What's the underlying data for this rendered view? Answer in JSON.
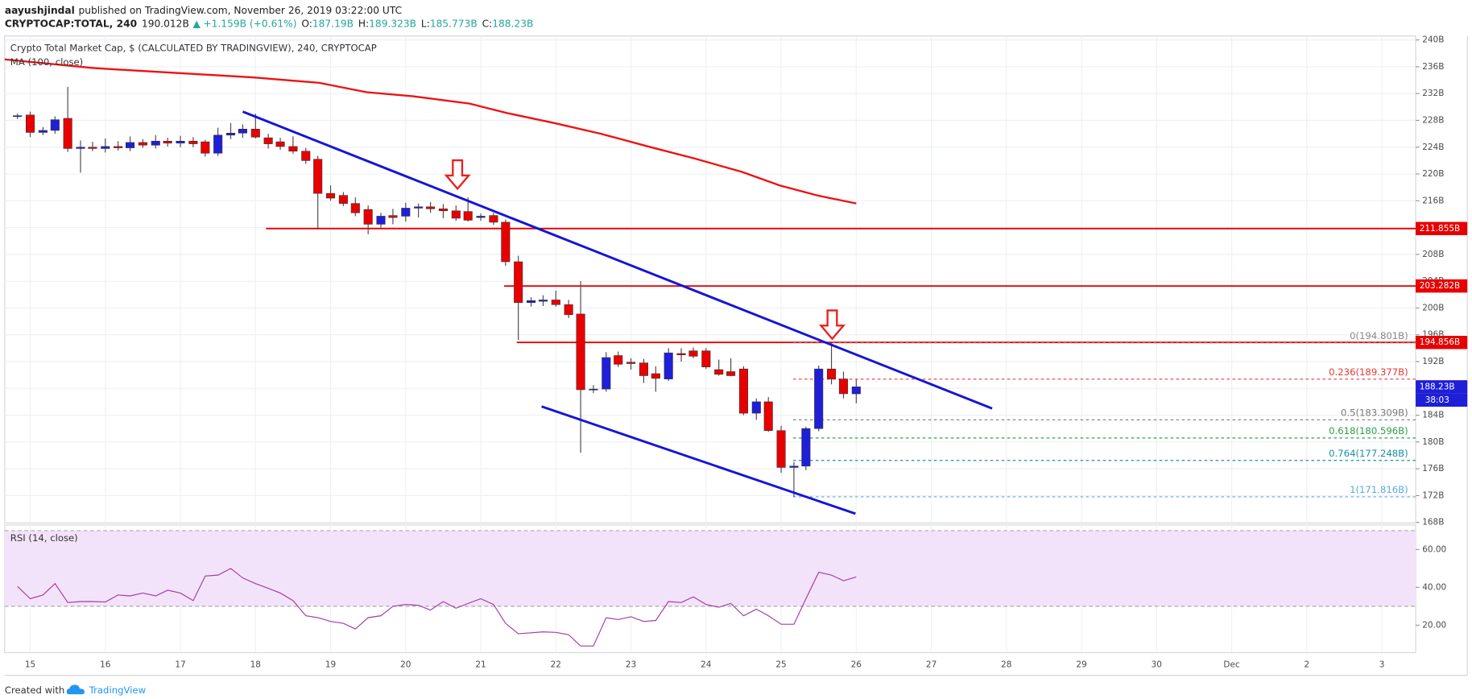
{
  "header": {
    "author": "aayushjindal",
    "published": "published on TradingView.com, November 26, 2019 03:22:00 UTC",
    "symbol": "CRYPTOCAP:TOTAL, 240",
    "price": "190.012B",
    "arrow": "▲",
    "change": "+1.159B (+0.61%)",
    "ohlc": [
      {
        "key": "O:",
        "value": "187.19B"
      },
      {
        "key": "H:",
        "value": "189.323B"
      },
      {
        "key": "L:",
        "value": "185.773B"
      },
      {
        "key": "C:",
        "value": "188.23B"
      }
    ]
  },
  "chart_data": [
    {
      "type": "candlestick",
      "title": "Crypto Total Market Cap, $ (CALCULATED BY TRADINGVIEW), 240, CRYPTOCAP",
      "up_color": "#1f1fd8",
      "down_color": "#e80000",
      "grid": true,
      "xlim": [
        14.66,
        33.45
      ],
      "xticks": [
        15,
        16,
        17,
        18,
        19,
        20,
        21,
        22,
        23,
        24,
        25,
        26,
        27,
        28,
        29,
        30,
        {
          "value": 31,
          "label": "Dec"
        },
        {
          "value": 32,
          "label": "2"
        },
        {
          "value": 33,
          "label": "3"
        }
      ],
      "ylim": [
        167.9,
        240.6
      ],
      "yticks": [
        {
          "value": 168,
          "label": "168B"
        },
        {
          "value": 172,
          "label": "172B"
        },
        {
          "value": 176,
          "label": "176B"
        },
        {
          "value": 180,
          "label": "180B"
        },
        {
          "value": 184,
          "label": "184B"
        },
        {
          "value": 188,
          "label": "188B"
        },
        {
          "value": 192,
          "label": "192B"
        },
        {
          "value": 196,
          "label": "196B"
        },
        {
          "value": 200,
          "label": "200B"
        },
        {
          "value": 204,
          "label": "204B"
        },
        {
          "value": 208,
          "label": "208B"
        },
        {
          "value": 212,
          "label": "212B"
        },
        {
          "value": 216,
          "label": "216B"
        },
        {
          "value": 220,
          "label": "220B"
        },
        {
          "value": 224,
          "label": "224B"
        },
        {
          "value": 228,
          "label": "228B"
        },
        {
          "value": 232,
          "label": "232B"
        },
        {
          "value": 236,
          "label": "236B"
        },
        {
          "value": 240,
          "label": "240B"
        }
      ],
      "x": [
        14.83,
        15,
        15.17,
        15.33,
        15.5,
        15.67,
        15.83,
        16,
        16.17,
        16.33,
        16.5,
        16.67,
        16.83,
        17,
        17.17,
        17.33,
        17.5,
        17.67,
        17.83,
        18,
        18.17,
        18.33,
        18.5,
        18.67,
        18.83,
        19,
        19.17,
        19.33,
        19.5,
        19.67,
        19.83,
        20,
        20.17,
        20.33,
        20.5,
        20.67,
        20.83,
        21,
        21.17,
        21.33,
        21.5,
        21.67,
        21.83,
        22,
        22.17,
        22.33,
        22.5,
        22.67,
        22.83,
        23,
        23.17,
        23.33,
        23.5,
        23.67,
        23.83,
        24,
        24.17,
        24.33,
        24.5,
        24.67,
        24.83,
        25,
        25.17,
        25.33,
        25.5,
        25.67,
        25.83,
        26
      ],
      "open": [
        228.6,
        228.8,
        226.2,
        226.5,
        228.3,
        223.8,
        224.0,
        223.8,
        224.1,
        223.9,
        224.7,
        224.3,
        224.9,
        224.6,
        224.9,
        224.8,
        223.1,
        225.8,
        226.1,
        226.7,
        225.4,
        224.8,
        224.1,
        223.4,
        222.2,
        217.1,
        216.8,
        215.6,
        214.7,
        212.5,
        213.8,
        213.7,
        214.9,
        215.1,
        214.8,
        214.5,
        214.4,
        213.5,
        213.8,
        212.8,
        206.9,
        200.8,
        201.0,
        201.2,
        200.5,
        199.1,
        187.8,
        187.9,
        192.9,
        191.9,
        191.8,
        190.2,
        189.4,
        193.2,
        193.6,
        193.6,
        190.8,
        190.5,
        190.9,
        184.3,
        186.0,
        181.7,
        176.2,
        176.4,
        182.0,
        190.9,
        189.4,
        187.19
      ],
      "high": [
        229.0,
        229.3,
        227.0,
        228.6,
        233.0,
        225.0,
        224.8,
        225.3,
        224.9,
        225.6,
        225.2,
        225.8,
        225.4,
        225.7,
        225.5,
        225.1,
        226.9,
        227.6,
        227.4,
        229.0,
        226.0,
        225.4,
        225.6,
        223.9,
        222.7,
        218.3,
        217.3,
        216.5,
        215.3,
        214.2,
        214.8,
        215.7,
        215.6,
        215.8,
        215.5,
        215.3,
        216.5,
        214.1,
        214.2,
        213.2,
        207.8,
        201.6,
        201.9,
        202.6,
        201.2,
        204.0,
        188.5,
        193.4,
        193.5,
        192.5,
        192.4,
        191.3,
        194.0,
        194.0,
        194.1,
        194.0,
        192.3,
        192.5,
        191.3,
        186.5,
        186.7,
        182.4,
        177.0,
        182.3,
        191.4,
        194.8,
        190.5,
        189.323
      ],
      "low": [
        228.2,
        225.5,
        225.8,
        226.0,
        223.3,
        220.2,
        223.4,
        223.2,
        223.5,
        223.4,
        223.9,
        223.8,
        224.1,
        224.0,
        224.0,
        222.6,
        222.7,
        225.2,
        225.4,
        225.3,
        223.8,
        223.6,
        223.0,
        221.5,
        211.7,
        216.0,
        215.2,
        213.7,
        211.0,
        212.0,
        212.5,
        212.9,
        213.5,
        214.2,
        213.4,
        213.0,
        212.9,
        213.0,
        212.4,
        206.3,
        195.2,
        200.2,
        200.3,
        200.2,
        198.5,
        178.4,
        187.3,
        187.5,
        191.2,
        190.8,
        188.8,
        187.5,
        189.1,
        192.0,
        192.5,
        190.9,
        189.9,
        189.8,
        184.0,
        183.3,
        181.5,
        175.4,
        171.8,
        175.8,
        181.6,
        188.6,
        186.5,
        185.773
      ],
      "close": [
        228.7,
        226.2,
        226.5,
        228.1,
        223.8,
        224.0,
        223.8,
        224.1,
        223.9,
        224.7,
        224.3,
        224.9,
        224.6,
        224.9,
        224.5,
        223.1,
        225.8,
        226.1,
        226.7,
        225.5,
        224.5,
        224.1,
        223.4,
        222.0,
        217.1,
        216.4,
        215.6,
        214.2,
        212.5,
        213.7,
        213.5,
        214.9,
        215.1,
        214.8,
        214.5,
        213.4,
        213.1,
        213.7,
        212.8,
        206.9,
        200.8,
        201.1,
        201.2,
        200.5,
        199.0,
        187.8,
        187.9,
        192.6,
        191.6,
        191.7,
        189.9,
        189.5,
        193.3,
        193.0,
        192.8,
        191.2,
        190.1,
        189.9,
        184.3,
        186.0,
        181.7,
        176.2,
        176.4,
        182.0,
        190.9,
        189.4,
        187.2,
        188.23
      ],
      "ma": {
        "name": "MA (100, close)",
        "color": "#ee1111",
        "x": [
          14.66,
          15.85,
          17.98,
          18.85,
          19.48,
          20.1,
          20.85,
          21.35,
          21.98,
          22.6,
          23.23,
          23.85,
          24.48,
          24.98,
          25.48,
          26.0
        ],
        "values": [
          237.1,
          235.8,
          234.4,
          233.6,
          232.2,
          231.6,
          230.5,
          229.1,
          227.6,
          226.0,
          224.1,
          222.3,
          220.3,
          218.3,
          216.8,
          215.6
        ]
      },
      "trendlines": [
        {
          "color": "#1515d6",
          "x": [
            17.83,
            27.81
          ],
          "y": [
            229.3,
            185.0
          ]
        },
        {
          "color": "#1515d6",
          "x": [
            21.81,
            25.99
          ],
          "y": [
            185.3,
            169.3
          ]
        }
      ],
      "arrows": [
        {
          "color": "#e82020",
          "x": 20.69,
          "y": 217.8
        },
        {
          "color": "#e82020",
          "x": 25.68,
          "y": 195.4
        }
      ],
      "levels": [
        {
          "value": 211.855,
          "label": "211.855B",
          "color": "#e80000",
          "start": 18.14
        },
        {
          "value": 203.282,
          "label": "203.282B",
          "color": "#e80000",
          "start": 21.31
        },
        {
          "value": 194.856,
          "label": "194.856B",
          "color": "#e80000",
          "start": 21.48
        }
      ],
      "fib": {
        "start": 25.16,
        "levels": [
          {
            "value": 194.801,
            "label": "0(194.801B)",
            "color": "#888888"
          },
          {
            "value": 189.377,
            "label": "0.236(189.377B)",
            "color": "#e53935"
          },
          {
            "value": 183.309,
            "label": "0.5(183.309B)",
            "color": "#777777"
          },
          {
            "value": 180.596,
            "label": "0.618(180.596B)",
            "color": "#2e9d4a"
          },
          {
            "value": 177.248,
            "label": "0.764(177.248B)",
            "color": "#1b8fa6"
          },
          {
            "value": 171.816,
            "label": "1(171.816B)",
            "color": "#5aa9e0"
          }
        ]
      },
      "last": {
        "value": 188.23,
        "label": "188.23B",
        "countdown": "38:03",
        "color": "#1f1fd8"
      }
    },
    {
      "type": "line",
      "name": "RSI (14, close)",
      "color": "#a23ca8",
      "band": [
        30,
        70
      ],
      "band_color": "#f3e3fa",
      "ylim": [
        5.5,
        71.5
      ],
      "yticks": [
        {
          "value": 20,
          "label": "20.00"
        },
        {
          "value": 40,
          "label": "40.00"
        },
        {
          "value": 60,
          "label": "60.00"
        }
      ],
      "values": [
        40.5,
        34,
        36,
        42,
        32,
        32.5,
        32.5,
        32.3,
        36,
        35.5,
        37,
        35.5,
        38.5,
        37,
        33,
        46,
        46.5,
        50,
        45,
        42,
        39.5,
        37,
        33,
        25,
        24,
        22,
        21,
        18,
        24,
        25,
        30,
        31,
        30.5,
        28,
        32.5,
        29,
        31.5,
        34,
        31,
        21,
        15.5,
        16,
        16.5,
        16.2,
        15,
        9,
        9,
        24,
        23,
        24.5,
        22,
        22.5,
        32.5,
        32,
        35,
        31,
        29.5,
        31.5,
        25,
        28.5,
        25,
        20.5,
        20.5,
        34,
        48,
        46.5,
        43.5,
        45.5
      ]
    }
  ],
  "footer": {
    "created": "Created with",
    "brand": "TradingView"
  }
}
